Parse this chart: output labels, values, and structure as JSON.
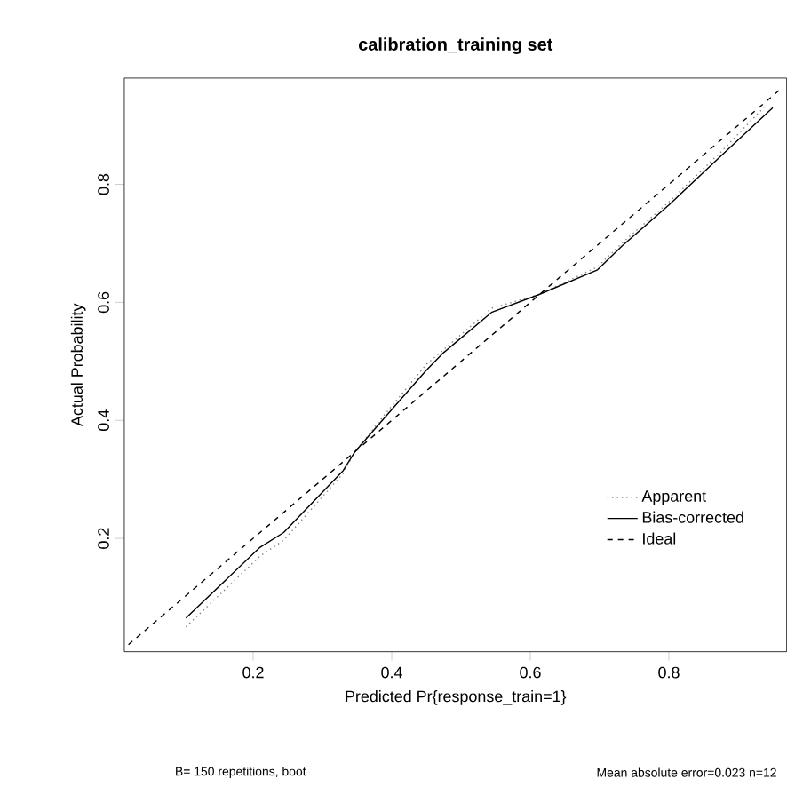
{
  "chart_data": {
    "type": "line",
    "title": "calibration_training set",
    "xlabel": "Predicted Pr{response_train=1}",
    "ylabel": "Actual Probability",
    "annotations": [
      "B= 150 repetitions, boot",
      "Mean absolute error=0.023 n=12"
    ],
    "xlim": [
      0.014,
      0.97
    ],
    "ylim": [
      0.008,
      0.98
    ],
    "xticks": [
      0.2,
      0.4,
      0.6,
      0.8
    ],
    "yticks": [
      0.2,
      0.4,
      0.6,
      0.8
    ],
    "grid": false,
    "legend": "bottom right",
    "marker": "none",
    "series": [
      {
        "name": "Apparent",
        "color": "#808080",
        "line_style": "dotted",
        "x": [
          0.103,
          0.21,
          0.244,
          0.33,
          0.347,
          0.39,
          0.45,
          0.475,
          0.544,
          0.612,
          0.697,
          0.732,
          0.8,
          0.877,
          0.941
        ],
        "values": [
          0.05,
          0.17,
          0.197,
          0.31,
          0.347,
          0.41,
          0.495,
          0.52,
          0.59,
          0.613,
          0.66,
          0.7,
          0.77,
          0.857,
          0.935
        ]
      },
      {
        "name": "Bias-corrected",
        "color": "#000000",
        "line_style": "solid",
        "x": [
          0.103,
          0.21,
          0.244,
          0.33,
          0.347,
          0.39,
          0.45,
          0.475,
          0.544,
          0.612,
          0.697,
          0.732,
          0.8,
          0.877,
          0.95
        ],
        "values": [
          0.065,
          0.185,
          0.21,
          0.315,
          0.347,
          0.405,
          0.485,
          0.515,
          0.583,
          0.613,
          0.655,
          0.695,
          0.765,
          0.85,
          0.93
        ]
      },
      {
        "name": "Ideal",
        "color": "#000000",
        "line_style": "dashed",
        "x": [
          0.02,
          0.96
        ],
        "values": [
          0.02,
          0.96
        ]
      }
    ]
  }
}
